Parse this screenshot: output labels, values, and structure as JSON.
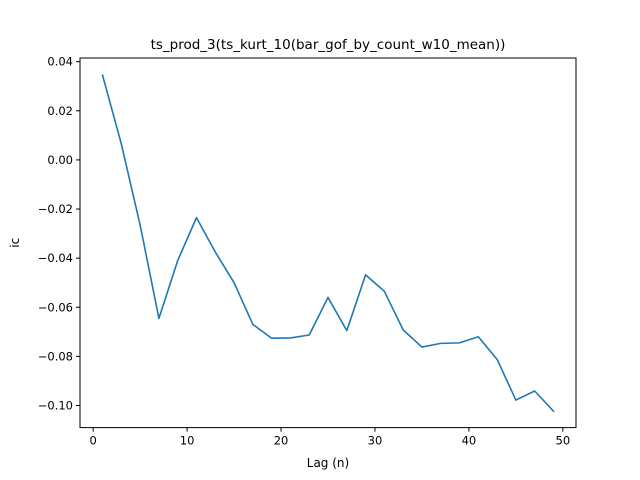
{
  "chart_data": {
    "type": "line",
    "title": "ts_prod_3(ts_kurt_10(bar_gof_by_count_w10_mean))",
    "xlabel": "Lag (n)",
    "ylabel": "ic",
    "xlim": [
      -1.4,
      51.4
    ],
    "ylim": [
      -0.109,
      0.0415
    ],
    "xticks": [
      0,
      10,
      20,
      30,
      40,
      50
    ],
    "xtick_labels": [
      "0",
      "10",
      "20",
      "30",
      "40",
      "50"
    ],
    "yticks": [
      0.04,
      0.02,
      0.0,
      -0.02,
      -0.04,
      -0.06,
      -0.08,
      -0.1
    ],
    "ytick_labels": [
      "0.04",
      "0.02",
      "0.00",
      "−0.02",
      "−0.04",
      "−0.06",
      "−0.08",
      "−0.10"
    ],
    "grid": false,
    "series": [
      {
        "color": "#1f77b4",
        "x": [
          1,
          3,
          5,
          7,
          9,
          11,
          13,
          15,
          17,
          19,
          21,
          23,
          25,
          27,
          29,
          31,
          33,
          35,
          37,
          39,
          41,
          43,
          45,
          47,
          49
        ],
        "values": [
          0.0345,
          0.0065,
          -0.0265,
          -0.0645,
          -0.041,
          -0.0235,
          -0.0375,
          -0.05,
          -0.067,
          -0.0726,
          -0.0725,
          -0.0713,
          -0.056,
          -0.0695,
          -0.0468,
          -0.0535,
          -0.0692,
          -0.0762,
          -0.0747,
          -0.0745,
          -0.072,
          -0.0812,
          -0.0978,
          -0.0941,
          -0.1023
        ]
      }
    ]
  }
}
